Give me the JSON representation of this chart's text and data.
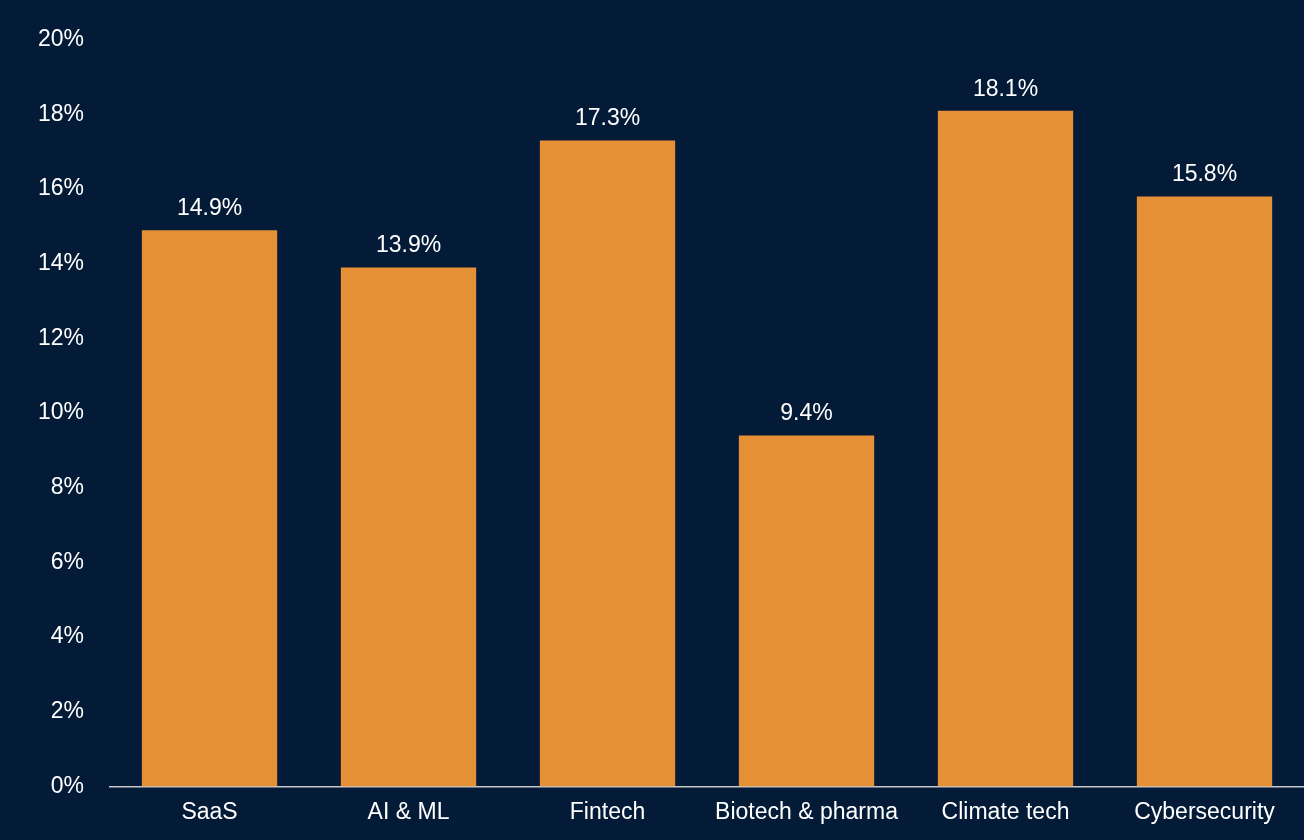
{
  "chart_data": {
    "type": "bar",
    "categories": [
      "SaaS",
      "AI & ML",
      "Fintech",
      "Biotech & pharma",
      "Climate tech",
      "Cybersecurity"
    ],
    "values": [
      14.9,
      13.9,
      17.3,
      9.4,
      18.1,
      15.8
    ],
    "value_labels": [
      "14.9%",
      "13.9%",
      "17.3%",
      "9.4%",
      "18.1%",
      "15.8%"
    ],
    "color": "#e69035",
    "ylim": [
      0,
      20
    ],
    "yticks": [
      {
        "value": 0,
        "label": "0%"
      },
      {
        "value": 2,
        "label": "2%"
      },
      {
        "value": 4,
        "label": "4%"
      },
      {
        "value": 6,
        "label": "6%"
      },
      {
        "value": 8,
        "label": "8%"
      },
      {
        "value": 10,
        "label": "10%"
      },
      {
        "value": 12,
        "label": "12%"
      },
      {
        "value": 14,
        "label": "14%"
      },
      {
        "value": 16,
        "label": "16%"
      },
      {
        "value": 18,
        "label": "18%"
      },
      {
        "value": 20,
        "label": "20%"
      }
    ],
    "grid": false,
    "legend": false
  }
}
